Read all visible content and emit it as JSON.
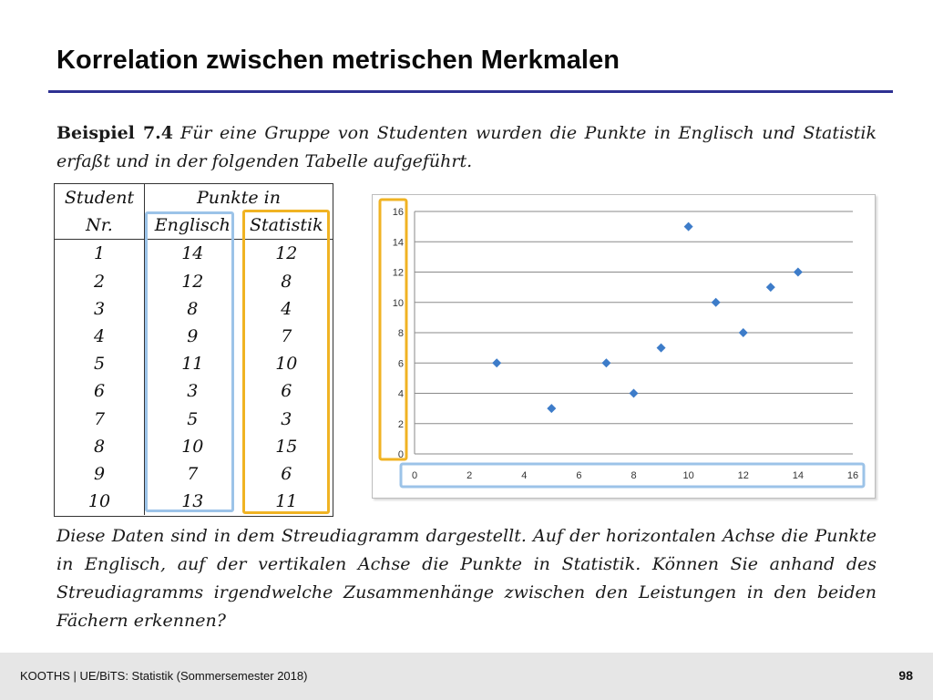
{
  "slide": {
    "title": "Korrelation zwischen metrischen Merkmalen"
  },
  "example": {
    "label": "Beispiel 7.4",
    "text": "Für eine Gruppe von Studenten wurden die Punkte in Englisch und Statistik erfaßt und in der folgenden Tabelle aufgeführt."
  },
  "table": {
    "header_student_line1": "Student",
    "header_student_line2": "Nr.",
    "header_points": "Punkte in",
    "header_english": "Englisch",
    "header_statistics": "Statistik",
    "rows": [
      {
        "nr": "1",
        "englisch": "14",
        "statistik": "12"
      },
      {
        "nr": "2",
        "englisch": "12",
        "statistik": "8"
      },
      {
        "nr": "3",
        "englisch": "8",
        "statistik": "4"
      },
      {
        "nr": "4",
        "englisch": "9",
        "statistik": "7"
      },
      {
        "nr": "5",
        "englisch": "11",
        "statistik": "10"
      },
      {
        "nr": "6",
        "englisch": "3",
        "statistik": "6"
      },
      {
        "nr": "7",
        "englisch": "5",
        "statistik": "3"
      },
      {
        "nr": "8",
        "englisch": "10",
        "statistik": "15"
      },
      {
        "nr": "9",
        "englisch": "7",
        "statistik": "6"
      },
      {
        "nr": "10",
        "englisch": "13",
        "statistik": "11"
      }
    ]
  },
  "chart_data": {
    "type": "scatter",
    "title": "",
    "xlabel": "",
    "ylabel": "",
    "xlim": [
      0,
      16
    ],
    "ylim": [
      0,
      16
    ],
    "xticks": [
      "0",
      "2",
      "4",
      "6",
      "8",
      "10",
      "12",
      "14",
      "16"
    ],
    "yticks": [
      "0",
      "2",
      "4",
      "6",
      "8",
      "10",
      "12",
      "14",
      "16"
    ],
    "grid": "horizontal",
    "marker_color": "#3d7cc9",
    "x_axis_highlight_color": "#9cc3e8",
    "y_axis_highlight_color": "#f0b323",
    "points": [
      {
        "x": 14,
        "y": 12
      },
      {
        "x": 12,
        "y": 8
      },
      {
        "x": 8,
        "y": 4
      },
      {
        "x": 9,
        "y": 7
      },
      {
        "x": 11,
        "y": 10
      },
      {
        "x": 3,
        "y": 6
      },
      {
        "x": 5,
        "y": 3
      },
      {
        "x": 10,
        "y": 15
      },
      {
        "x": 7,
        "y": 6
      },
      {
        "x": 13,
        "y": 11
      }
    ]
  },
  "description": {
    "text": "Diese Daten sind in dem Streudiagramm dargestellt. Auf der horizontalen Achse die Punkte in Englisch, auf der vertikalen Achse die Punkte in Statistik. Können Sie anhand des Streudiagramms irgendwelche Zusammenhänge zwischen den Leistungen in den beiden Fächern erkennen?"
  },
  "footer": {
    "text": "KOOTHS | UE/BiTS: Statistik (Sommersemester 2018)",
    "page_number": "98"
  }
}
